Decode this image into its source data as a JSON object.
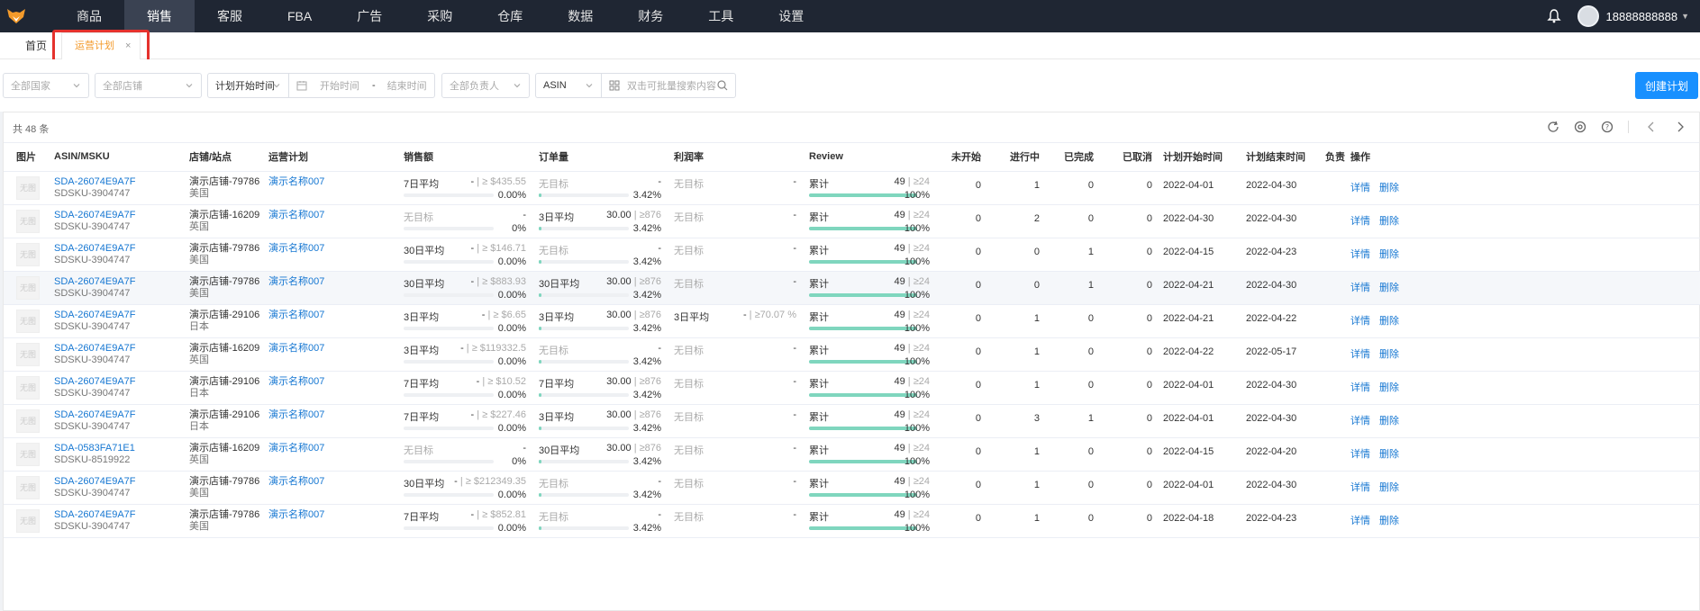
{
  "nav": {
    "items": [
      "商品",
      "销售",
      "客服",
      "FBA",
      "广告",
      "采购",
      "仓库",
      "数据",
      "财务",
      "工具",
      "设置"
    ],
    "active_index": 1,
    "username": "18888888888"
  },
  "tabs": {
    "home": "首页",
    "active": "运营计划",
    "close": "×"
  },
  "filters": {
    "country": "全部国家",
    "store": "全部店铺",
    "time_type": "计划开始时间",
    "start_placeholder": "开始时间",
    "range_sep": "-",
    "end_placeholder": "结束时间",
    "owner": "全部负责人",
    "search_type": "ASIN",
    "search_placeholder": "双击可批量搜索内容",
    "create_label": "创建计划"
  },
  "table": {
    "count_label": "共 48 条",
    "headers": {
      "image": "图片",
      "asin": "ASIN/MSKU",
      "store": "店铺/站点",
      "plan": "运营计划",
      "sales": "销售额",
      "orders": "订单量",
      "margin": "利润率",
      "review": "Review",
      "not_started": "未开始",
      "in_progress": "进行中",
      "completed": "已完成",
      "cancelled": "已取消",
      "start": "计划开始时间",
      "end": "计划结束时间",
      "owner": "负责人",
      "ops": "操作"
    },
    "thumb_text": "无图",
    "op_detail": "详情",
    "op_delete": "删除",
    "rows": [
      {
        "asin": "SDA-26074E9A7F",
        "msku": "SDSKU-3904747",
        "store": "演示店铺-79786",
        "site": "美国",
        "plan": "演示名称007",
        "s_label": "7日平均",
        "s_val": "-",
        "s_tgt": "≥ $435.55",
        "s_pct": "0.00%",
        "s_fill": 0,
        "o_label": "无目标",
        "o_val": "-",
        "o_tgt": "",
        "o_pct": "3.42%",
        "o_fill": 0.03,
        "m_label": "无目标",
        "m_val": "-",
        "m_tgt": "",
        "r_label": "累计",
        "r_val": "49",
        "r_tgt": "≥24",
        "r_pct": "100%",
        "r_fill": 1,
        "ns": "0",
        "ip": "1",
        "cp": "0",
        "cc": "0",
        "start": "2022-04-01",
        "end": "2022-04-30"
      },
      {
        "asin": "SDA-26074E9A7F",
        "msku": "SDSKU-3904747",
        "store": "演示店铺-16209",
        "site": "英国",
        "plan": "演示名称007",
        "s_label": "无目标",
        "s_val": "-",
        "s_tgt": "",
        "s_pct": "0%",
        "s_fill": 0,
        "o_label": "3日平均",
        "o_val": "30.00",
        "o_tgt": "≥876",
        "o_pct": "3.42%",
        "o_fill": 0.03,
        "m_label": "无目标",
        "m_val": "-",
        "m_tgt": "",
        "r_label": "累计",
        "r_val": "49",
        "r_tgt": "≥24",
        "r_pct": "100%",
        "r_fill": 1,
        "ns": "0",
        "ip": "2",
        "cp": "0",
        "cc": "0",
        "start": "2022-04-30",
        "end": "2022-04-30"
      },
      {
        "asin": "SDA-26074E9A7F",
        "msku": "SDSKU-3904747",
        "store": "演示店铺-79786",
        "site": "美国",
        "plan": "演示名称007",
        "s_label": "30日平均",
        "s_val": "-",
        "s_tgt": "≥ $146.71",
        "s_pct": "0.00%",
        "s_fill": 0,
        "o_label": "无目标",
        "o_val": "-",
        "o_tgt": "",
        "o_pct": "3.42%",
        "o_fill": 0.03,
        "m_label": "无目标",
        "m_val": "-",
        "m_tgt": "",
        "r_label": "累计",
        "r_val": "49",
        "r_tgt": "≥24",
        "r_pct": "100%",
        "r_fill": 1,
        "ns": "0",
        "ip": "0",
        "cp": "1",
        "cc": "0",
        "start": "2022-04-15",
        "end": "2022-04-23"
      },
      {
        "asin": "SDA-26074E9A7F",
        "msku": "SDSKU-3904747",
        "store": "演示店铺-79786",
        "site": "美国",
        "plan": "演示名称007",
        "s_label": "30日平均",
        "s_val": "-",
        "s_tgt": "≥ $883.93",
        "s_pct": "0.00%",
        "s_fill": 0,
        "o_label": "30日平均",
        "o_val": "30.00",
        "o_tgt": "≥876",
        "o_pct": "3.42%",
        "o_fill": 0.03,
        "m_label": "无目标",
        "m_val": "-",
        "m_tgt": "",
        "r_label": "累计",
        "r_val": "49",
        "r_tgt": "≥24",
        "r_pct": "100%",
        "r_fill": 1,
        "ns": "0",
        "ip": "0",
        "cp": "1",
        "cc": "0",
        "start": "2022-04-21",
        "end": "2022-04-30"
      },
      {
        "asin": "SDA-26074E9A7F",
        "msku": "SDSKU-3904747",
        "store": "演示店铺-29106",
        "site": "日本",
        "plan": "演示名称007",
        "s_label": "3日平均",
        "s_val": "-",
        "s_tgt": "≥ $6.65",
        "s_pct": "0.00%",
        "s_fill": 0,
        "o_label": "3日平均",
        "o_val": "30.00",
        "o_tgt": "≥876",
        "o_pct": "3.42%",
        "o_fill": 0.03,
        "m_label": "3日平均",
        "m_val": "-",
        "m_tgt": "≥70.07 %",
        "r_label": "累计",
        "r_val": "49",
        "r_tgt": "≥24",
        "r_pct": "100%",
        "r_fill": 1,
        "ns": "0",
        "ip": "1",
        "cp": "0",
        "cc": "0",
        "start": "2022-04-21",
        "end": "2022-04-22"
      },
      {
        "asin": "SDA-26074E9A7F",
        "msku": "SDSKU-3904747",
        "store": "演示店铺-16209",
        "site": "英国",
        "plan": "演示名称007",
        "s_label": "3日平均",
        "s_val": "-",
        "s_tgt": "≥ $119332.5",
        "s_pct": "0.00%",
        "s_fill": 0,
        "o_label": "无目标",
        "o_val": "-",
        "o_tgt": "",
        "o_pct": "3.42%",
        "o_fill": 0.03,
        "m_label": "无目标",
        "m_val": "-",
        "m_tgt": "",
        "r_label": "累计",
        "r_val": "49",
        "r_tgt": "≥24",
        "r_pct": "100%",
        "r_fill": 1,
        "ns": "0",
        "ip": "1",
        "cp": "0",
        "cc": "0",
        "start": "2022-04-22",
        "end": "2022-05-17"
      },
      {
        "asin": "SDA-26074E9A7F",
        "msku": "SDSKU-3904747",
        "store": "演示店铺-29106",
        "site": "日本",
        "plan": "演示名称007",
        "s_label": "7日平均",
        "s_val": "-",
        "s_tgt": "≥ $10.52",
        "s_pct": "0.00%",
        "s_fill": 0,
        "o_label": "7日平均",
        "o_val": "30.00",
        "o_tgt": "≥876",
        "o_pct": "3.42%",
        "o_fill": 0.03,
        "m_label": "无目标",
        "m_val": "-",
        "m_tgt": "",
        "r_label": "累计",
        "r_val": "49",
        "r_tgt": "≥24",
        "r_pct": "100%",
        "r_fill": 1,
        "ns": "0",
        "ip": "1",
        "cp": "0",
        "cc": "0",
        "start": "2022-04-01",
        "end": "2022-04-30"
      },
      {
        "asin": "SDA-26074E9A7F",
        "msku": "SDSKU-3904747",
        "store": "演示店铺-29106",
        "site": "日本",
        "plan": "演示名称007",
        "s_label": "7日平均",
        "s_val": "-",
        "s_tgt": "≥ $227.46",
        "s_pct": "0.00%",
        "s_fill": 0,
        "o_label": "3日平均",
        "o_val": "30.00",
        "o_tgt": "≥876",
        "o_pct": "3.42%",
        "o_fill": 0.03,
        "m_label": "无目标",
        "m_val": "-",
        "m_tgt": "",
        "r_label": "累计",
        "r_val": "49",
        "r_tgt": "≥24",
        "r_pct": "100%",
        "r_fill": 1,
        "ns": "0",
        "ip": "3",
        "cp": "1",
        "cc": "0",
        "start": "2022-04-01",
        "end": "2022-04-30"
      },
      {
        "asin": "SDA-0583FA71E1",
        "msku": "SDSKU-8519922",
        "store": "演示店铺-16209",
        "site": "英国",
        "plan": "演示名称007",
        "s_label": "无目标",
        "s_val": "-",
        "s_tgt": "",
        "s_pct": "0%",
        "s_fill": 0,
        "o_label": "30日平均",
        "o_val": "30.00",
        "o_tgt": "≥876",
        "o_pct": "3.42%",
        "o_fill": 0.03,
        "m_label": "无目标",
        "m_val": "-",
        "m_tgt": "",
        "r_label": "累计",
        "r_val": "49",
        "r_tgt": "≥24",
        "r_pct": "100%",
        "r_fill": 1,
        "ns": "0",
        "ip": "1",
        "cp": "0",
        "cc": "0",
        "start": "2022-04-15",
        "end": "2022-04-20"
      },
      {
        "asin": "SDA-26074E9A7F",
        "msku": "SDSKU-3904747",
        "store": "演示店铺-79786",
        "site": "美国",
        "plan": "演示名称007",
        "s_label": "30日平均",
        "s_val": "-",
        "s_tgt": "≥ $212349.35",
        "s_pct": "0.00%",
        "s_fill": 0,
        "o_label": "无目标",
        "o_val": "-",
        "o_tgt": "",
        "o_pct": "3.42%",
        "o_fill": 0.03,
        "m_label": "无目标",
        "m_val": "-",
        "m_tgt": "",
        "r_label": "累计",
        "r_val": "49",
        "r_tgt": "≥24",
        "r_pct": "100%",
        "r_fill": 1,
        "ns": "0",
        "ip": "1",
        "cp": "0",
        "cc": "0",
        "start": "2022-04-01",
        "end": "2022-04-30"
      },
      {
        "asin": "SDA-26074E9A7F",
        "msku": "SDSKU-3904747",
        "store": "演示店铺-79786",
        "site": "美国",
        "plan": "演示名称007",
        "s_label": "7日平均",
        "s_val": "-",
        "s_tgt": "≥ $852.81",
        "s_pct": "0.00%",
        "s_fill": 0,
        "o_label": "无目标",
        "o_val": "-",
        "o_tgt": "",
        "o_pct": "3.42%",
        "o_fill": 0.03,
        "m_label": "无目标",
        "m_val": "-",
        "m_tgt": "",
        "r_label": "累计",
        "r_val": "49",
        "r_tgt": "≥24",
        "r_pct": "100%",
        "r_fill": 1,
        "ns": "0",
        "ip": "1",
        "cp": "0",
        "cc": "0",
        "start": "2022-04-18",
        "end": "2022-04-23"
      }
    ],
    "highlight_row": 3
  },
  "colors": {
    "nav_bg": "#1f2633",
    "accent": "#1890ff",
    "tab_active": "#f39a2b",
    "highlight_box": "#e5322d",
    "progress": "#7fd6be",
    "link": "#1677d2"
  },
  "icons": [
    "fox-logo-icon",
    "bell-icon",
    "avatar",
    "calendar-icon",
    "grid-icon",
    "search-icon",
    "refresh-icon",
    "settings-icon",
    "help-icon",
    "chevron-left-icon",
    "chevron-right-icon"
  ]
}
